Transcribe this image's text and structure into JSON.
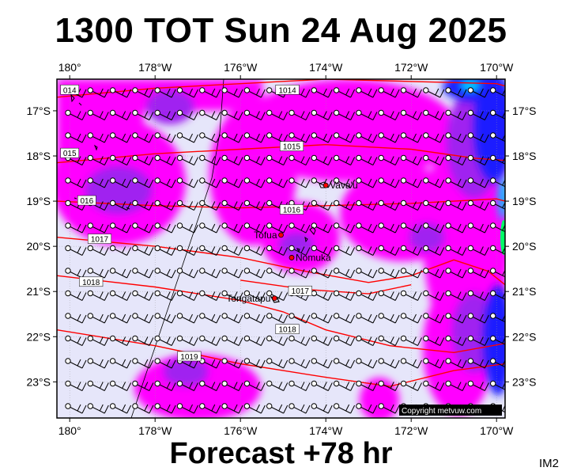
{
  "title": "1300 TOT Sun 24 Aug 2025",
  "footer": "Forecast +78 hr",
  "product_code": "IM2",
  "copyright": "Copyright metvuw.com",
  "colors": {
    "background_field": "#e6e6fa",
    "magenta": "#ff00ff",
    "violet": "#a020f0",
    "purple": "#7b3fd6",
    "blue": "#1a1aff",
    "cyan": "#00c8ff",
    "green": "#00ff66",
    "isobar": "#ff0000"
  },
  "map": {
    "lon_range": [
      -180.3,
      -169.8
    ],
    "lat_range": [
      -16.3,
      -23.8
    ],
    "x_ticks": [
      "180°",
      "178°W",
      "176°W",
      "174°W",
      "172°W",
      "170°W"
    ],
    "x_tick_values": [
      -180,
      -178,
      -176,
      -174,
      -172,
      -170
    ],
    "y_ticks": [
      "17°S",
      "18°S",
      "19°S",
      "20°S",
      "21°S",
      "22°S",
      "23°S"
    ],
    "y_tick_values": [
      -17,
      -18,
      -19,
      -20,
      -21,
      -22,
      -23
    ],
    "places": [
      {
        "name": "Vava'u",
        "lon": -174.0,
        "lat": -18.65
      },
      {
        "name": "Tofua",
        "lon": -175.05,
        "lat": -19.75
      },
      {
        "name": "Nomuka",
        "lon": -174.8,
        "lat": -20.25
      },
      {
        "name": "Tongatapu",
        "lon": -175.2,
        "lat": -21.15
      }
    ],
    "isobars": [
      {
        "label": "1014",
        "label_lon": -174.9,
        "label_lat": -16.55,
        "points": [
          [
            -180.3,
            -16.7
          ],
          [
            -178,
            -16.5
          ],
          [
            -176,
            -16.4
          ],
          [
            -174,
            -16.3
          ],
          [
            -172,
            -16.35
          ],
          [
            -170,
            -16.4
          ],
          [
            -169.8,
            -16.45
          ]
        ]
      },
      {
        "label": "1015",
        "label_lon": -174.8,
        "label_lat": -17.8,
        "points": [
          [
            -180.3,
            -18.15
          ],
          [
            -178,
            -17.95
          ],
          [
            -176,
            -17.85
          ],
          [
            -174,
            -17.75
          ],
          [
            -172,
            -17.85
          ],
          [
            -170.5,
            -18.05
          ],
          [
            -169.8,
            -18.1
          ]
        ]
      },
      {
        "label": "1016",
        "label_lon": -174.8,
        "label_lat": -19.2,
        "points": [
          [
            -180.3,
            -19.0
          ],
          [
            -178,
            -19.1
          ],
          [
            -176,
            -19.15
          ],
          [
            -174,
            -19.1
          ],
          [
            -172,
            -19.05
          ],
          [
            -170,
            -18.95
          ],
          [
            -169.8,
            -19.0
          ]
        ]
      },
      {
        "label": "1017",
        "label_lon": -179.3,
        "label_lat": -19.85,
        "points": [
          [
            -180.3,
            -19.8
          ],
          [
            -178,
            -20.0
          ],
          [
            -176,
            -20.25
          ],
          [
            -174.5,
            -20.55
          ],
          [
            -173,
            -20.8
          ],
          [
            -172,
            -20.65
          ],
          [
            -171,
            -20.3
          ],
          [
            -170.2,
            -20.55
          ],
          [
            -169.8,
            -20.85
          ]
        ]
      },
      {
        "label": "1017",
        "label_lon": -174.6,
        "label_lat": -21.0,
        "points": [
          [
            -176,
            -20.75
          ],
          [
            -174.5,
            -20.95
          ],
          [
            -173,
            -21.05
          ],
          [
            -172,
            -20.85
          ]
        ]
      },
      {
        "label": "1018",
        "label_lon": -179.5,
        "label_lat": -20.8,
        "points": [
          [
            -180.3,
            -20.65
          ],
          [
            -178,
            -20.9
          ],
          [
            -176,
            -21.2
          ],
          [
            -175,
            -21.45
          ],
          [
            -174,
            -21.85
          ],
          [
            -172.5,
            -22.2
          ],
          [
            -171,
            -22.35
          ],
          [
            -169.8,
            -22.15
          ]
        ]
      },
      {
        "label": "1018",
        "label_lon": -174.9,
        "label_lat": -21.85,
        "points": []
      },
      {
        "label": "1019",
        "label_lon": -177.2,
        "label_lat": -22.45,
        "points": [
          [
            -180.3,
            -21.85
          ],
          [
            -178,
            -22.2
          ],
          [
            -176,
            -22.6
          ],
          [
            -174,
            -22.9
          ],
          [
            -172.5,
            -23.1
          ],
          [
            -171,
            -22.75
          ],
          [
            -169.8,
            -22.6
          ]
        ]
      },
      {
        "label": "016",
        "label_lon": -179.6,
        "label_lat": -19.0,
        "points": []
      },
      {
        "label": "015",
        "label_lon": -180.0,
        "label_lat": -17.95,
        "points": []
      },
      {
        "label": "014",
        "label_lon": -180.0,
        "label_lat": -16.55,
        "points": []
      }
    ]
  }
}
